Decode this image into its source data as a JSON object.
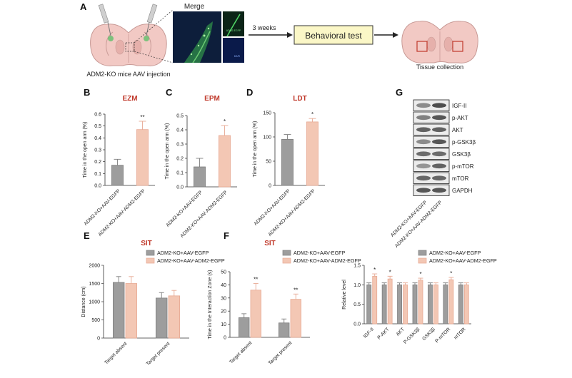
{
  "colors": {
    "grey": "#9d9d9d",
    "peach": "#f3c7b4",
    "peach_edge": "#e7a993",
    "accent_red": "#c0392b",
    "box_fill": "#fbf7c7"
  },
  "panelA": {
    "label": "A",
    "merge_title": "Merge",
    "inset_label": "ADM2-EGFP",
    "inset_label2": "DAPI",
    "weeks": "3 weeks",
    "behavioral": "Behavioral test",
    "caption_left": "ADM2-KO mice AAV injection",
    "caption_right": "Tissue collection"
  },
  "legend": {
    "s1": "ADM2-KO+AAV-EGFP",
    "s2": "ADM2-KO+AAV-ADM2-EGFP"
  },
  "chart_data": [
    {
      "id": "B",
      "type": "bar",
      "title": "EZM",
      "ylabel": "Time in the open arm (%)",
      "ylim": [
        0,
        0.6
      ],
      "yticks": [
        "0.0",
        "0.1",
        "0.2",
        "0.3",
        "0.4",
        "0.5",
        "0.6"
      ],
      "categories": [
        "ADM2-KO+AAV-EGFP",
        "ADM2-KO+AAV-ADM2-EGFP"
      ],
      "values": [
        0.17,
        0.47
      ],
      "errors": [
        0.05,
        0.07
      ],
      "sig": [
        "",
        "**"
      ]
    },
    {
      "id": "C",
      "type": "bar",
      "title": "EPM",
      "ylabel": "Time in the open arm (%)",
      "ylim": [
        0,
        0.5
      ],
      "yticks": [
        "0.0",
        "0.1",
        "0.2",
        "0.3",
        "0.4",
        "0.5"
      ],
      "categories": [
        "ADM2-KO+AAV-EGFP",
        "ADM2-KO+AAV-ADM2-EGFP"
      ],
      "values": [
        0.14,
        0.36
      ],
      "errors": [
        0.06,
        0.07
      ],
      "sig": [
        "",
        "*"
      ]
    },
    {
      "id": "D",
      "type": "bar",
      "title": "LDT",
      "ylabel": "Time in the open arm (%)",
      "ylim": [
        0,
        150
      ],
      "yticks": [
        "0",
        "50",
        "100",
        "150"
      ],
      "categories": [
        "ADM2-KO+AAV-EGFP",
        "ADM2-KO+AAV-ADM2-EGFP"
      ],
      "values": [
        95,
        131
      ],
      "errors": [
        10,
        7
      ],
      "sig": [
        "",
        "*"
      ]
    },
    {
      "id": "E",
      "type": "bar",
      "title": "SIT",
      "ylabel": "Distance (cm)",
      "ylim": [
        0,
        2000
      ],
      "yticks": [
        "0",
        "500",
        "1000",
        "1500",
        "2000"
      ],
      "categories": [
        "Target absent",
        "Target present"
      ],
      "series": [
        {
          "name": "ADM2-KO+AAV-EGFP",
          "values": [
            1530,
            1100
          ],
          "errors": [
            160,
            150
          ]
        },
        {
          "name": "ADM2-KO+AAV-ADM2-EGFP",
          "values": [
            1500,
            1160
          ],
          "errors": [
            190,
            150
          ]
        }
      ],
      "sig": [
        [
          "",
          ""
        ],
        [
          "",
          ""
        ]
      ]
    },
    {
      "id": "F",
      "type": "bar",
      "title": "SIT",
      "ylabel": "Time in the Interaction Zone (s)",
      "ylim": [
        0,
        50
      ],
      "yticks": [
        "0",
        "10",
        "20",
        "30",
        "40",
        "50"
      ],
      "categories": [
        "Target absent",
        "Target present"
      ],
      "series": [
        {
          "name": "ADM2-KO+AAV-EGFP",
          "values": [
            15,
            11
          ],
          "errors": [
            3,
            3
          ]
        },
        {
          "name": "ADM2-KO+AAV-ADM2-EGFP",
          "values": [
            36,
            29
          ],
          "errors": [
            5,
            4
          ]
        }
      ],
      "sig": [
        [
          "",
          ""
        ],
        [
          "**",
          "**"
        ]
      ]
    },
    {
      "id": "G2",
      "type": "bar",
      "title": "",
      "ylabel": "Relative level",
      "ylim": [
        0,
        1.5
      ],
      "yticks": [
        "0.0",
        "0.5",
        "1.0",
        "1.5"
      ],
      "categories": [
        "IGF-II",
        "P-AKT",
        "AKT",
        "P-GSK3β",
        "GSK3β",
        "P-mTOR",
        "mTOR"
      ],
      "series": [
        {
          "name": "ADM2-KO+AAV-EGFP",
          "values": [
            1.0,
            1.0,
            1.0,
            1.0,
            1.0,
            1.0,
            1.0
          ],
          "errors": [
            0.05,
            0.05,
            0.05,
            0.05,
            0.05,
            0.05,
            0.05
          ]
        },
        {
          "name": "ADM2-KO+AAV-ADM2-EGFP",
          "values": [
            1.22,
            1.15,
            1.0,
            1.12,
            1.0,
            1.13,
            1.0
          ],
          "errors": [
            0.06,
            0.07,
            0.05,
            0.05,
            0.05,
            0.06,
            0.05
          ]
        }
      ],
      "sig": [
        [
          "",
          "",
          "",
          "",
          "",
          "",
          ""
        ],
        [
          "*",
          "*",
          "",
          "*",
          "",
          "*",
          ""
        ]
      ]
    }
  ],
  "western": {
    "label": "G",
    "bands": [
      "IGF-II",
      "p-AKT",
      "AKT",
      "p-GSK3β",
      "GSK3β",
      "p-mTOR",
      "mTOR",
      "GAPDH"
    ],
    "xlabels": [
      "ADM2-KO+AAV-EGFP",
      "ADM2-KO+AAV-ADM2-EGFP"
    ]
  }
}
